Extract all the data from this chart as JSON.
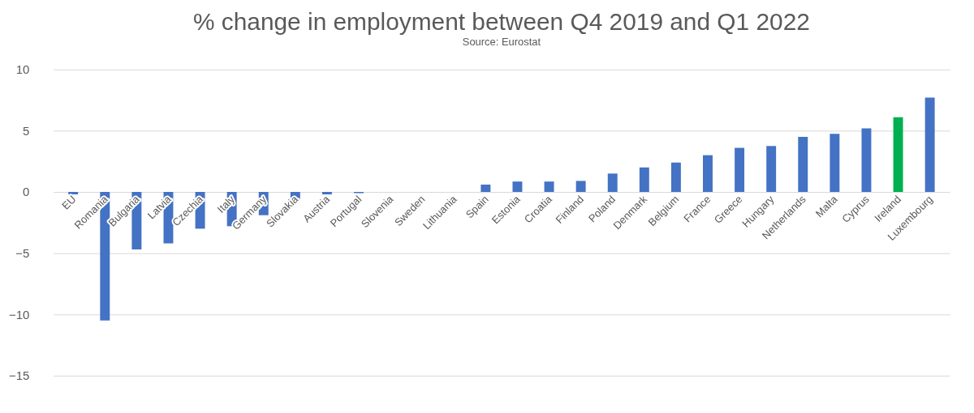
{
  "chart_data": {
    "type": "bar",
    "title": "% change in employment between Q4 2019 and Q1 2022",
    "annotations": [
      "Source: Eurostat"
    ],
    "categories": [
      "EU",
      "Romania",
      "Bulgaria",
      "Latvia",
      "Czechia",
      "Italy",
      "Germany",
      "Slovakia",
      "Austria",
      "Portugal",
      "Slovenia",
      "Sweden",
      "Lithuania",
      "Spain",
      "Estonia",
      "Croatia",
      "Finland",
      "Poland",
      "Denmark",
      "Belgium",
      "France",
      "Greece",
      "Hungary",
      "Netherlands",
      "Malta",
      "Cyprus",
      "Ireland",
      "Luxembourg"
    ],
    "values": [
      -0.2,
      -10.5,
      -4.7,
      -4.2,
      -3.0,
      -2.8,
      -1.9,
      -0.7,
      -0.2,
      -0.1,
      0,
      0,
      0,
      0.6,
      0.85,
      0.85,
      0.9,
      1.5,
      2.0,
      2.4,
      3.0,
      3.6,
      3.75,
      4.5,
      4.75,
      5.2,
      6.1,
      7.7
    ],
    "colors": [
      "#4472c4",
      "#4472c4",
      "#4472c4",
      "#4472c4",
      "#4472c4",
      "#4472c4",
      "#4472c4",
      "#4472c4",
      "#4472c4",
      "#4472c4",
      "#4472c4",
      "#4472c4",
      "#4472c4",
      "#4472c4",
      "#4472c4",
      "#4472c4",
      "#4472c4",
      "#4472c4",
      "#4472c4",
      "#4472c4",
      "#4472c4",
      "#4472c4",
      "#4472c4",
      "#4472c4",
      "#4472c4",
      "#4472c4",
      "#00b050",
      "#4472c4"
    ],
    "ylim": [
      -15,
      10
    ],
    "yticks": [
      -15,
      -10,
      -5,
      0,
      5,
      10
    ],
    "grid": "y"
  }
}
